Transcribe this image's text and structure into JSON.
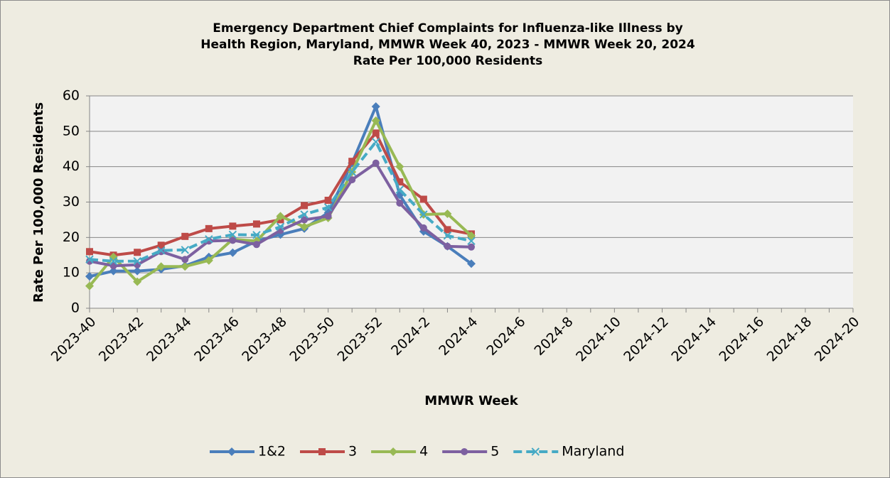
{
  "chart_data": {
    "type": "line",
    "title": [
      "Emergency Department Chief Complaints for Influenza-like Illness by",
      "Health Region, Maryland, MMWR Week 40, 2023 - MMWR Week 20, 2024",
      "Rate Per 100,000 Residents"
    ],
    "x_label": "MMWR Week",
    "y_label": "Rate Per 100,000 Residents",
    "categories": [
      "2023-40",
      null,
      "2023-42",
      null,
      "2023-44",
      null,
      "2023-46",
      null,
      "2023-48",
      null,
      "2023-50",
      null,
      "2023-52",
      null,
      "2024-2",
      null,
      "2024-4",
      null,
      "2024-6",
      null,
      "2024-8",
      null,
      "2024-10",
      null,
      "2024-12",
      null,
      "2024-14",
      null,
      "2024-16",
      null,
      "2024-18",
      null,
      "2024-20"
    ],
    "ylim": [
      0,
      60
    ],
    "yticks": [
      0,
      10,
      20,
      30,
      40,
      50,
      60
    ],
    "grid": true,
    "legend": "bottom",
    "series": [
      {
        "name": "1&2",
        "color": "#4a7ebb",
        "marker": "diamond",
        "dash": false,
        "values": [
          9,
          10.5,
          10.5,
          11,
          12,
          14.5,
          15.7,
          19,
          20.8,
          22.5,
          27,
          41,
          57,
          32,
          21.7,
          17.5,
          12.6,
          null,
          null,
          null,
          null,
          null,
          null,
          null,
          null,
          null,
          null,
          null,
          null,
          null,
          null,
          null,
          null
        ]
      },
      {
        "name": "3",
        "color": "#be4b48",
        "marker": "square",
        "dash": false,
        "values": [
          16,
          15,
          15.8,
          17.8,
          20.3,
          22.5,
          23.2,
          23.8,
          25,
          29,
          30.5,
          41.5,
          49.5,
          35.7,
          30.8,
          22.2,
          21,
          null,
          null,
          null,
          null,
          null,
          null,
          null,
          null,
          null,
          null,
          null,
          null,
          null,
          null,
          null,
          null
        ]
      },
      {
        "name": "4",
        "color": "#98b954",
        "marker": "diamond",
        "dash": false,
        "values": [
          6.3,
          14.5,
          7.5,
          11.8,
          11.8,
          13.5,
          19.5,
          19,
          26,
          23,
          25.5,
          38.5,
          53,
          40,
          26.5,
          26.7,
          20.5,
          null,
          null,
          null,
          null,
          null,
          null,
          null,
          null,
          null,
          null,
          null,
          null,
          null,
          null,
          null,
          null
        ]
      },
      {
        "name": "5",
        "color": "#7d60a0",
        "marker": "circle",
        "dash": false,
        "values": [
          13.3,
          12,
          12.3,
          16,
          13.8,
          19,
          19.2,
          18,
          22,
          25,
          26,
          36.3,
          41,
          29.7,
          22.7,
          17.5,
          17.3,
          null,
          null,
          null,
          null,
          null,
          null,
          null,
          null,
          null,
          null,
          null,
          null,
          null,
          null,
          null,
          null
        ]
      },
      {
        "name": "Maryland",
        "color": "#46aac5",
        "marker": "x",
        "dash": true,
        "values": [
          13.8,
          13.3,
          13.3,
          16.3,
          16.5,
          19.5,
          20.8,
          20.7,
          23,
          26.5,
          28.5,
          38.5,
          47,
          33.5,
          26.5,
          20.5,
          19,
          null,
          null,
          null,
          null,
          null,
          null,
          null,
          null,
          null,
          null,
          null,
          null,
          null,
          null,
          null,
          null
        ]
      }
    ]
  }
}
